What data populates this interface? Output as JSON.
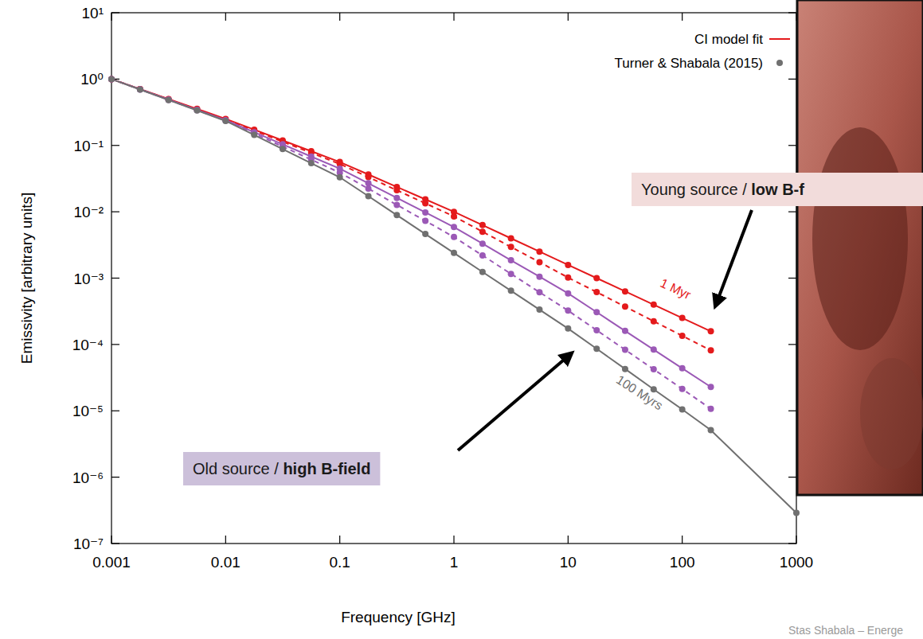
{
  "chart_data": {
    "type": "line",
    "log": true,
    "grid": false,
    "legend": "top-right",
    "marker": "circle",
    "xlabel": "Frequency [GHz]",
    "ylabel": "Emissivity [arbitrary units]",
    "xlim": [
      0.001,
      1000
    ],
    "ylim": [
      1e-07,
      10
    ],
    "xticks": [
      0.001,
      0.01,
      0.1,
      1,
      10,
      100,
      1000
    ],
    "yticks": [
      {
        "value": 1e-07,
        "label": "10⁻⁷"
      },
      {
        "value": 1e-06,
        "label": "10⁻⁶"
      },
      {
        "value": 1e-05,
        "label": "10⁻⁵"
      },
      {
        "value": 0.0001,
        "label": "10⁻⁴"
      },
      {
        "value": 0.001,
        "label": "10⁻³"
      },
      {
        "value": 0.01,
        "label": "10⁻²"
      },
      {
        "value": 0.1,
        "label": "10⁻¹"
      },
      {
        "value": 1,
        "label": "10⁰"
      },
      {
        "value": 10,
        "label": "10¹"
      }
    ],
    "legend_entries": [
      {
        "label": "CI model fit",
        "color": "#e41a1c",
        "line_style": "solid"
      },
      {
        "label": "Turner & Shabala (2015)",
        "color": "#707070",
        "marker": "circle"
      }
    ],
    "x": [
      0.001,
      0.00178,
      0.00316,
      0.00562,
      0.01,
      0.0178,
      0.0316,
      0.0562,
      0.1,
      0.178,
      0.316,
      0.562,
      1,
      1.78,
      3.16,
      5.62,
      10,
      17.8,
      31.6,
      56.2,
      100,
      178,
      1000
    ],
    "series": [
      {
        "name": "1 Myr",
        "color": "#e41a1c",
        "line_style": "solid",
        "values": [
          1,
          0.708,
          0.501,
          0.355,
          0.251,
          0.173,
          0.119,
          0.0818,
          0.0562,
          0.0365,
          0.0237,
          0.0154,
          0.01,
          0.00631,
          0.00398,
          0.00251,
          0.00158,
          0.001,
          0.000631,
          0.000398,
          0.000251,
          0.000158,
          null
        ]
      },
      {
        "color": "#e41a1c",
        "line_style": "dashed",
        "values": [
          1,
          0.704,
          0.495,
          0.349,
          0.245,
          0.167,
          0.114,
          0.0772,
          0.0525,
          0.0333,
          0.0211,
          0.0134,
          0.00851,
          0.00501,
          0.00295,
          0.00174,
          0.00102,
          0.000617,
          0.000372,
          0.000224,
          0.000135,
          8.13e-05,
          null
        ]
      },
      {
        "color": "#9b59b6",
        "line_style": "solid",
        "values": [
          1,
          0.7,
          0.49,
          0.343,
          0.24,
          0.158,
          0.104,
          0.068,
          0.0447,
          0.0269,
          0.0162,
          0.00977,
          0.00589,
          0.00331,
          0.00186,
          0.00105,
          0.000589,
          0.000307,
          0.00016,
          8.37e-05,
          4.37e-05,
          2.29e-05,
          null
        ]
      },
      {
        "color": "#9b59b6",
        "line_style": "dashed",
        "values": [
          1,
          0.698,
          0.487,
          0.34,
          0.237,
          0.151,
          0.0961,
          0.0611,
          0.0389,
          0.0223,
          0.0127,
          0.00729,
          0.00417,
          0.0022,
          0.00116,
          0.000613,
          0.000324,
          0.000164,
          8.32e-05,
          4.22e-05,
          2.14e-05,
          1.07e-05,
          null
        ]
      },
      {
        "name": "100 Myrs",
        "color": "#707070",
        "line_style": "solid",
        "values": [
          1,
          0.696,
          0.484,
          0.337,
          0.234,
          0.144,
          0.0881,
          0.054,
          0.0331,
          0.0172,
          0.00891,
          0.00462,
          0.0024,
          0.00124,
          0.000646,
          0.000335,
          0.000174,
          8.61e-05,
          4.27e-05,
          2.11e-05,
          1.05e-05,
          5.13e-06,
          2.9e-07
        ]
      }
    ],
    "annotations": [
      {
        "text": "Young source / ",
        "emphasis": "low B-f"
      },
      {
        "text": "Old source / ",
        "emphasis": "high B-field"
      }
    ],
    "footer": "Stas Shabala – Energe"
  }
}
